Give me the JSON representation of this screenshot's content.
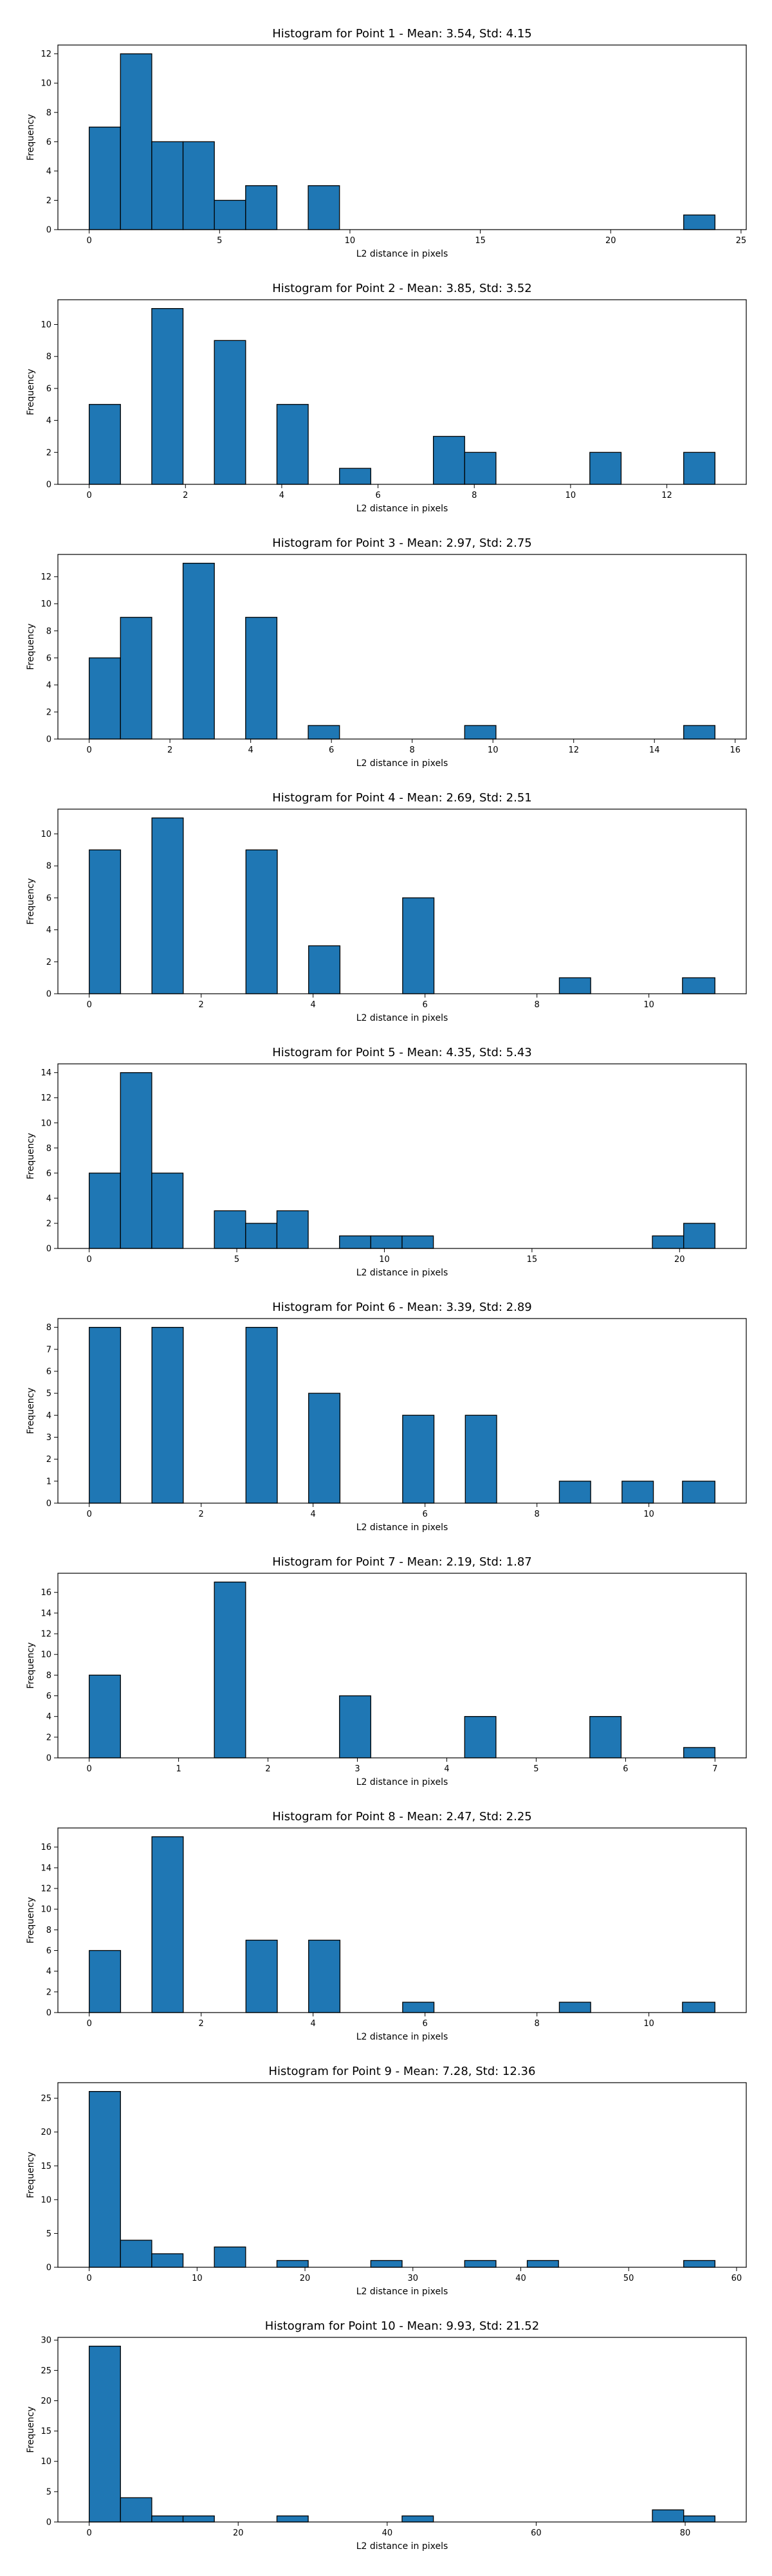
{
  "style": {
    "bar_fill": "#1f77b4",
    "bar_edge": "#000000",
    "axes_color": "#000000",
    "background": "#ffffff"
  },
  "chart_data": [
    {
      "type": "bar",
      "title": "Histogram for Point 1 - Mean: 3.54, Std: 4.15",
      "xlabel": "L2 distance in pixels",
      "ylabel": "Frequency",
      "xlim": [
        -1.2,
        25.2
      ],
      "ylim": [
        0,
        12.6
      ],
      "xticks": [
        0,
        5,
        10,
        15,
        20,
        25
      ],
      "yticks": [
        0,
        2,
        4,
        6,
        8,
        10,
        12
      ],
      "bins": [
        [
          0,
          1.2
        ],
        [
          1.2,
          2.4
        ],
        [
          2.4,
          3.6
        ],
        [
          3.6,
          4.8
        ],
        [
          4.8,
          6.0
        ],
        [
          6.0,
          7.2
        ],
        [
          8.4,
          9.6
        ],
        [
          22.8,
          24.0
        ]
      ],
      "values": [
        7,
        12,
        6,
        6,
        2,
        3,
        3,
        1
      ]
    },
    {
      "type": "bar",
      "title": "Histogram for Point 2 - Mean: 3.85, Std: 3.52",
      "xlabel": "L2 distance in pixels",
      "ylabel": "Frequency",
      "xlim": [
        -0.65,
        13.65
      ],
      "ylim": [
        0,
        11.55
      ],
      "xticks": [
        0,
        2,
        4,
        6,
        8,
        10,
        12
      ],
      "yticks": [
        0,
        2,
        4,
        6,
        8,
        10
      ],
      "bins": [
        [
          0,
          0.65
        ],
        [
          1.3,
          1.95
        ],
        [
          2.6,
          3.25
        ],
        [
          3.9,
          4.55
        ],
        [
          5.2,
          5.85
        ],
        [
          7.15,
          7.8
        ],
        [
          7.8,
          8.45
        ],
        [
          10.4,
          11.05
        ],
        [
          12.35,
          13.0
        ]
      ],
      "values": [
        5,
        11,
        9,
        5,
        1,
        3,
        2,
        2,
        2
      ]
    },
    {
      "type": "bar",
      "title": "Histogram for Point 3 - Mean: 2.97, Std: 2.75",
      "xlabel": "L2 distance in pixels",
      "ylabel": "Frequency",
      "xlim": [
        -0.775,
        16.275
      ],
      "ylim": [
        0,
        13.65
      ],
      "xticks": [
        0,
        2,
        4,
        6,
        8,
        10,
        12,
        14,
        16
      ],
      "yticks": [
        0,
        2,
        4,
        6,
        8,
        10,
        12
      ],
      "bins": [
        [
          0,
          0.775
        ],
        [
          0.775,
          1.55
        ],
        [
          2.325,
          3.1
        ],
        [
          3.875,
          4.65
        ],
        [
          5.425,
          6.2
        ],
        [
          9.3,
          10.075
        ],
        [
          14.725,
          15.5
        ]
      ],
      "values": [
        6,
        9,
        13,
        9,
        1,
        1,
        1
      ]
    },
    {
      "type": "bar",
      "title": "Histogram for Point 4 - Mean: 2.69, Std: 2.51",
      "xlabel": "L2 distance in pixels",
      "ylabel": "Frequency",
      "xlim": [
        -0.56,
        11.74
      ],
      "ylim": [
        0,
        11.55
      ],
      "xticks": [
        0,
        2,
        4,
        6,
        8,
        10
      ],
      "yticks": [
        0,
        2,
        4,
        6,
        8,
        10
      ],
      "bins": [
        [
          0,
          0.56
        ],
        [
          1.12,
          1.68
        ],
        [
          2.8,
          3.36
        ],
        [
          3.92,
          4.48
        ],
        [
          5.6,
          6.16
        ],
        [
          8.4,
          8.96
        ],
        [
          10.6,
          11.18
        ]
      ],
      "values": [
        9,
        11,
        9,
        3,
        6,
        1,
        1
      ]
    },
    {
      "type": "bar",
      "title": "Histogram for Point 5 - Mean: 4.35, Std: 5.43",
      "xlabel": "L2 distance in pixels",
      "ylabel": "Frequency",
      "xlim": [
        -1.06,
        22.26
      ],
      "ylim": [
        0,
        14.7
      ],
      "xticks": [
        0,
        5,
        10,
        15,
        20
      ],
      "yticks": [
        0,
        2,
        4,
        6,
        8,
        10,
        12,
        14
      ],
      "bins": [
        [
          0,
          1.06
        ],
        [
          1.06,
          2.12
        ],
        [
          2.12,
          3.18
        ],
        [
          4.24,
          5.3
        ],
        [
          5.3,
          6.36
        ],
        [
          6.36,
          7.42
        ],
        [
          8.48,
          9.54
        ],
        [
          9.54,
          10.6
        ],
        [
          10.6,
          11.66
        ],
        [
          19.08,
          20.14
        ],
        [
          20.14,
          21.2
        ]
      ],
      "values": [
        6,
        14,
        6,
        3,
        2,
        3,
        1,
        1,
        1,
        1,
        2
      ]
    },
    {
      "type": "bar",
      "title": "Histogram for Point 6 - Mean: 3.39, Std: 2.89",
      "xlabel": "L2 distance in pixels",
      "ylabel": "Frequency",
      "xlim": [
        -0.56,
        11.74
      ],
      "ylim": [
        0,
        8.4
      ],
      "xticks": [
        0,
        2,
        4,
        6,
        8,
        10
      ],
      "yticks": [
        0,
        1,
        2,
        3,
        4,
        5,
        6,
        7,
        8
      ],
      "bins": [
        [
          0,
          0.56
        ],
        [
          1.12,
          1.68
        ],
        [
          2.8,
          3.36
        ],
        [
          3.92,
          4.48
        ],
        [
          5.6,
          6.16
        ],
        [
          6.72,
          7.28
        ],
        [
          8.4,
          8.96
        ],
        [
          9.52,
          10.08
        ],
        [
          10.6,
          11.18
        ]
      ],
      "values": [
        8,
        8,
        8,
        5,
        4,
        4,
        1,
        1,
        1
      ]
    },
    {
      "type": "bar",
      "title": "Histogram for Point 7 - Mean: 2.19, Std: 1.87",
      "xlabel": "L2 distance in pixels",
      "ylabel": "Frequency",
      "xlim": [
        -0.35,
        7.35
      ],
      "ylim": [
        0,
        17.85
      ],
      "xticks": [
        0,
        1,
        2,
        3,
        4,
        5,
        6,
        7
      ],
      "yticks": [
        0,
        2,
        4,
        6,
        8,
        10,
        12,
        14,
        16
      ],
      "bins": [
        [
          0,
          0.35
        ],
        [
          1.4,
          1.75
        ],
        [
          2.8,
          3.15
        ],
        [
          4.2,
          4.55
        ],
        [
          5.6,
          5.95
        ],
        [
          6.65,
          7.0
        ]
      ],
      "values": [
        8,
        17,
        6,
        4,
        4,
        1
      ]
    },
    {
      "type": "bar",
      "title": "Histogram for Point 8 - Mean: 2.47, Std: 2.25",
      "xlabel": "L2 distance in pixels",
      "ylabel": "Frequency",
      "xlim": [
        -0.56,
        11.74
      ],
      "ylim": [
        0,
        17.85
      ],
      "xticks": [
        0,
        2,
        4,
        6,
        8,
        10
      ],
      "yticks": [
        0,
        2,
        4,
        6,
        8,
        10,
        12,
        14,
        16
      ],
      "bins": [
        [
          0,
          0.56
        ],
        [
          1.12,
          1.68
        ],
        [
          2.8,
          3.36
        ],
        [
          3.92,
          4.48
        ],
        [
          5.6,
          6.16
        ],
        [
          8.4,
          8.96
        ],
        [
          10.6,
          11.18
        ]
      ],
      "values": [
        6,
        17,
        7,
        7,
        1,
        1,
        1
      ]
    },
    {
      "type": "bar",
      "title": "Histogram for Point 9 - Mean: 7.28, Std: 12.36",
      "xlabel": "L2 distance in pixels",
      "ylabel": "Frequency",
      "xlim": [
        -2.9,
        60.9
      ],
      "ylim": [
        0,
        27.3
      ],
      "xticks": [
        0,
        10,
        20,
        30,
        40,
        50,
        60
      ],
      "yticks": [
        0,
        5,
        10,
        15,
        20,
        25
      ],
      "bins": [
        [
          0,
          2.9
        ],
        [
          2.9,
          5.8
        ],
        [
          5.8,
          8.7
        ],
        [
          11.6,
          14.5
        ],
        [
          17.4,
          20.3
        ],
        [
          26.1,
          29.0
        ],
        [
          34.8,
          37.7
        ],
        [
          40.6,
          43.5
        ],
        [
          55.1,
          58.0
        ]
      ],
      "values": [
        26,
        4,
        2,
        3,
        1,
        1,
        1,
        1,
        1
      ]
    },
    {
      "type": "bar",
      "title": "Histogram for Point 10 - Mean: 9.93, Std: 21.52",
      "xlabel": "L2 distance in pixels",
      "ylabel": "Frequency",
      "xlim": [
        -4.2,
        88.2
      ],
      "ylim": [
        0,
        30.45
      ],
      "xticks": [
        0,
        20,
        40,
        60,
        80
      ],
      "yticks": [
        0,
        5,
        10,
        15,
        20,
        25,
        30
      ],
      "bins": [
        [
          0,
          4.2
        ],
        [
          4.2,
          8.4
        ],
        [
          8.4,
          12.6
        ],
        [
          12.6,
          16.8
        ],
        [
          25.2,
          29.4
        ],
        [
          42.0,
          46.2
        ],
        [
          75.6,
          79.8
        ],
        [
          79.8,
          84.0
        ]
      ],
      "values": [
        29,
        4,
        1,
        1,
        1,
        1,
        2,
        1
      ]
    }
  ]
}
